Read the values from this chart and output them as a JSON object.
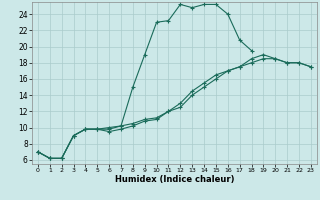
{
  "xlabel": "Humidex (Indice chaleur)",
  "bg_color": "#cce8e8",
  "grid_color": "#aacccc",
  "line_color": "#1a6b5a",
  "xlim": [
    -0.5,
    23.5
  ],
  "ylim": [
    5.5,
    25.5
  ],
  "xticks": [
    0,
    1,
    2,
    3,
    4,
    5,
    6,
    7,
    8,
    9,
    10,
    11,
    12,
    13,
    14,
    15,
    16,
    17,
    18,
    19,
    20,
    21,
    22,
    23
  ],
  "yticks": [
    6,
    8,
    10,
    12,
    14,
    16,
    18,
    20,
    22,
    24
  ],
  "line1_x": [
    0,
    1,
    2,
    3,
    4,
    5,
    6,
    7,
    8,
    9,
    10,
    11,
    12,
    13,
    14,
    15,
    16,
    17,
    18
  ],
  "line1_y": [
    7.0,
    6.2,
    6.2,
    9.0,
    9.8,
    9.8,
    9.8,
    10.2,
    15.0,
    19.0,
    23.0,
    23.2,
    25.2,
    24.8,
    25.2,
    25.2,
    24.0,
    20.8,
    19.5
  ],
  "line2_x": [
    0,
    1,
    2,
    3,
    4,
    5,
    6,
    7,
    8,
    9,
    10,
    11,
    12,
    13,
    14,
    15,
    16,
    17,
    18,
    19,
    20,
    21,
    22,
    23
  ],
  "line2_y": [
    7.0,
    6.2,
    6.2,
    9.0,
    9.8,
    9.8,
    10.0,
    10.2,
    10.5,
    11.0,
    11.2,
    12.0,
    13.0,
    14.5,
    15.5,
    16.5,
    17.0,
    17.5,
    18.0,
    18.5,
    18.5,
    18.0,
    18.0,
    17.5
  ],
  "line3_x": [
    0,
    1,
    2,
    3,
    4,
    5,
    6,
    7,
    8,
    9,
    10,
    11,
    12,
    13,
    14,
    15,
    16,
    17,
    18,
    19,
    20,
    21,
    22,
    23
  ],
  "line3_y": [
    7.0,
    6.2,
    6.2,
    9.0,
    9.8,
    9.8,
    9.5,
    9.8,
    10.2,
    10.8,
    11.0,
    12.0,
    12.5,
    14.0,
    15.0,
    16.0,
    17.0,
    17.5,
    18.5,
    19.0,
    18.5,
    18.0,
    18.0,
    17.5
  ]
}
